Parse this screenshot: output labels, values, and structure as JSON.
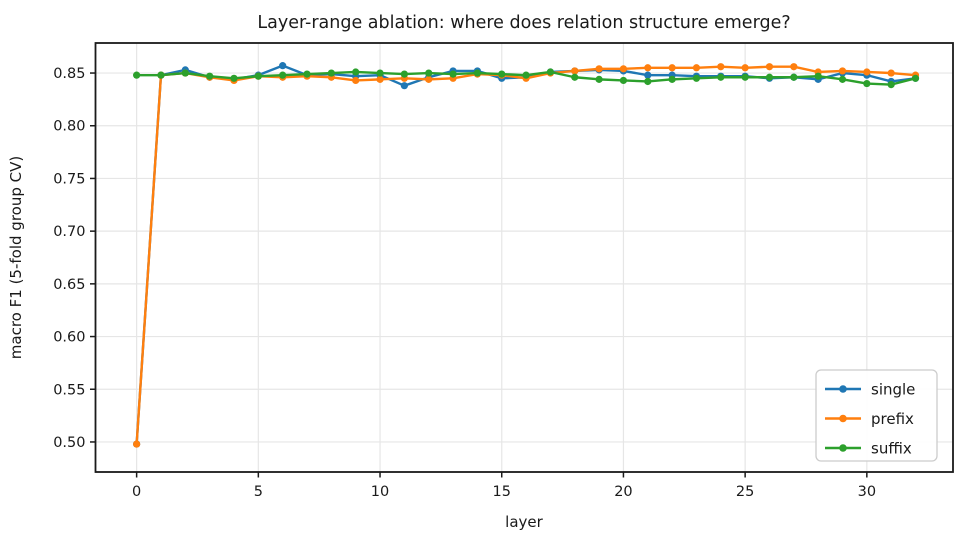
{
  "chart_data": {
    "type": "line",
    "title": "Layer-range ablation: where does relation structure emerge?",
    "xlabel": "layer",
    "ylabel": "macro F1 (5-fold group CV)",
    "x": [
      0,
      1,
      2,
      3,
      4,
      5,
      6,
      7,
      8,
      9,
      10,
      11,
      12,
      13,
      14,
      15,
      16,
      17,
      18,
      19,
      20,
      21,
      22,
      23,
      24,
      25,
      26,
      27,
      28,
      29,
      30,
      31,
      32
    ],
    "series": [
      {
        "name": "single",
        "color": "#1f77b4",
        "values": [
          0.498,
          0.848,
          0.853,
          0.846,
          0.844,
          0.848,
          0.857,
          0.848,
          0.849,
          0.847,
          0.848,
          0.838,
          0.846,
          0.852,
          0.852,
          0.845,
          0.846,
          0.851,
          0.852,
          0.853,
          0.852,
          0.848,
          0.848,
          0.847,
          0.847,
          0.847,
          0.845,
          0.846,
          0.844,
          0.85,
          0.848,
          0.842,
          0.845
        ]
      },
      {
        "name": "prefix",
        "color": "#ff7f0e",
        "values": [
          0.498,
          0.848,
          0.85,
          0.846,
          0.843,
          0.847,
          0.846,
          0.847,
          0.846,
          0.843,
          0.844,
          0.845,
          0.844,
          0.845,
          0.849,
          0.848,
          0.845,
          0.85,
          0.852,
          0.854,
          0.854,
          0.855,
          0.855,
          0.855,
          0.856,
          0.855,
          0.856,
          0.856,
          0.851,
          0.852,
          0.851,
          0.85,
          0.848
        ]
      },
      {
        "name": "suffix",
        "color": "#2ca02c",
        "values": [
          0.848,
          0.848,
          0.85,
          0.847,
          0.845,
          0.847,
          0.848,
          0.849,
          0.85,
          0.851,
          0.85,
          0.849,
          0.85,
          0.849,
          0.85,
          0.849,
          0.848,
          0.851,
          0.846,
          0.844,
          0.843,
          0.842,
          0.844,
          0.845,
          0.846,
          0.846,
          0.846,
          0.846,
          0.847,
          0.844,
          0.84,
          0.839,
          0.845
        ]
      }
    ],
    "xticks": [
      {
        "v": 0,
        "label": "0"
      },
      {
        "v": 5,
        "label": "5"
      },
      {
        "v": 10,
        "label": "10"
      },
      {
        "v": 15,
        "label": "15"
      },
      {
        "v": 20,
        "label": "20"
      },
      {
        "v": 25,
        "label": "25"
      },
      {
        "v": 30,
        "label": "30"
      }
    ],
    "yticks": [
      {
        "v": 0.5,
        "label": "0.50"
      },
      {
        "v": 0.55,
        "label": "0.55"
      },
      {
        "v": 0.6,
        "label": "0.60"
      },
      {
        "v": 0.65,
        "label": "0.65"
      },
      {
        "v": 0.7,
        "label": "0.70"
      },
      {
        "v": 0.75,
        "label": "0.75"
      },
      {
        "v": 0.8,
        "label": "0.80"
      },
      {
        "v": 0.85,
        "label": "0.85"
      }
    ],
    "xlim": [
      -1.69,
      33.54
    ],
    "ylim": [
      0.4715,
      0.8785
    ],
    "grid": true,
    "legend": {
      "position": "lower right",
      "entries": [
        "single",
        "prefix",
        "suffix"
      ]
    }
  },
  "colors": {
    "grid": "#e6e6e6",
    "spine": "#1a1a1a",
    "tick": "#1a1a1a",
    "text": "#1a1a1a",
    "legend_border": "#cccccc",
    "legend_bg": "#ffffff"
  }
}
